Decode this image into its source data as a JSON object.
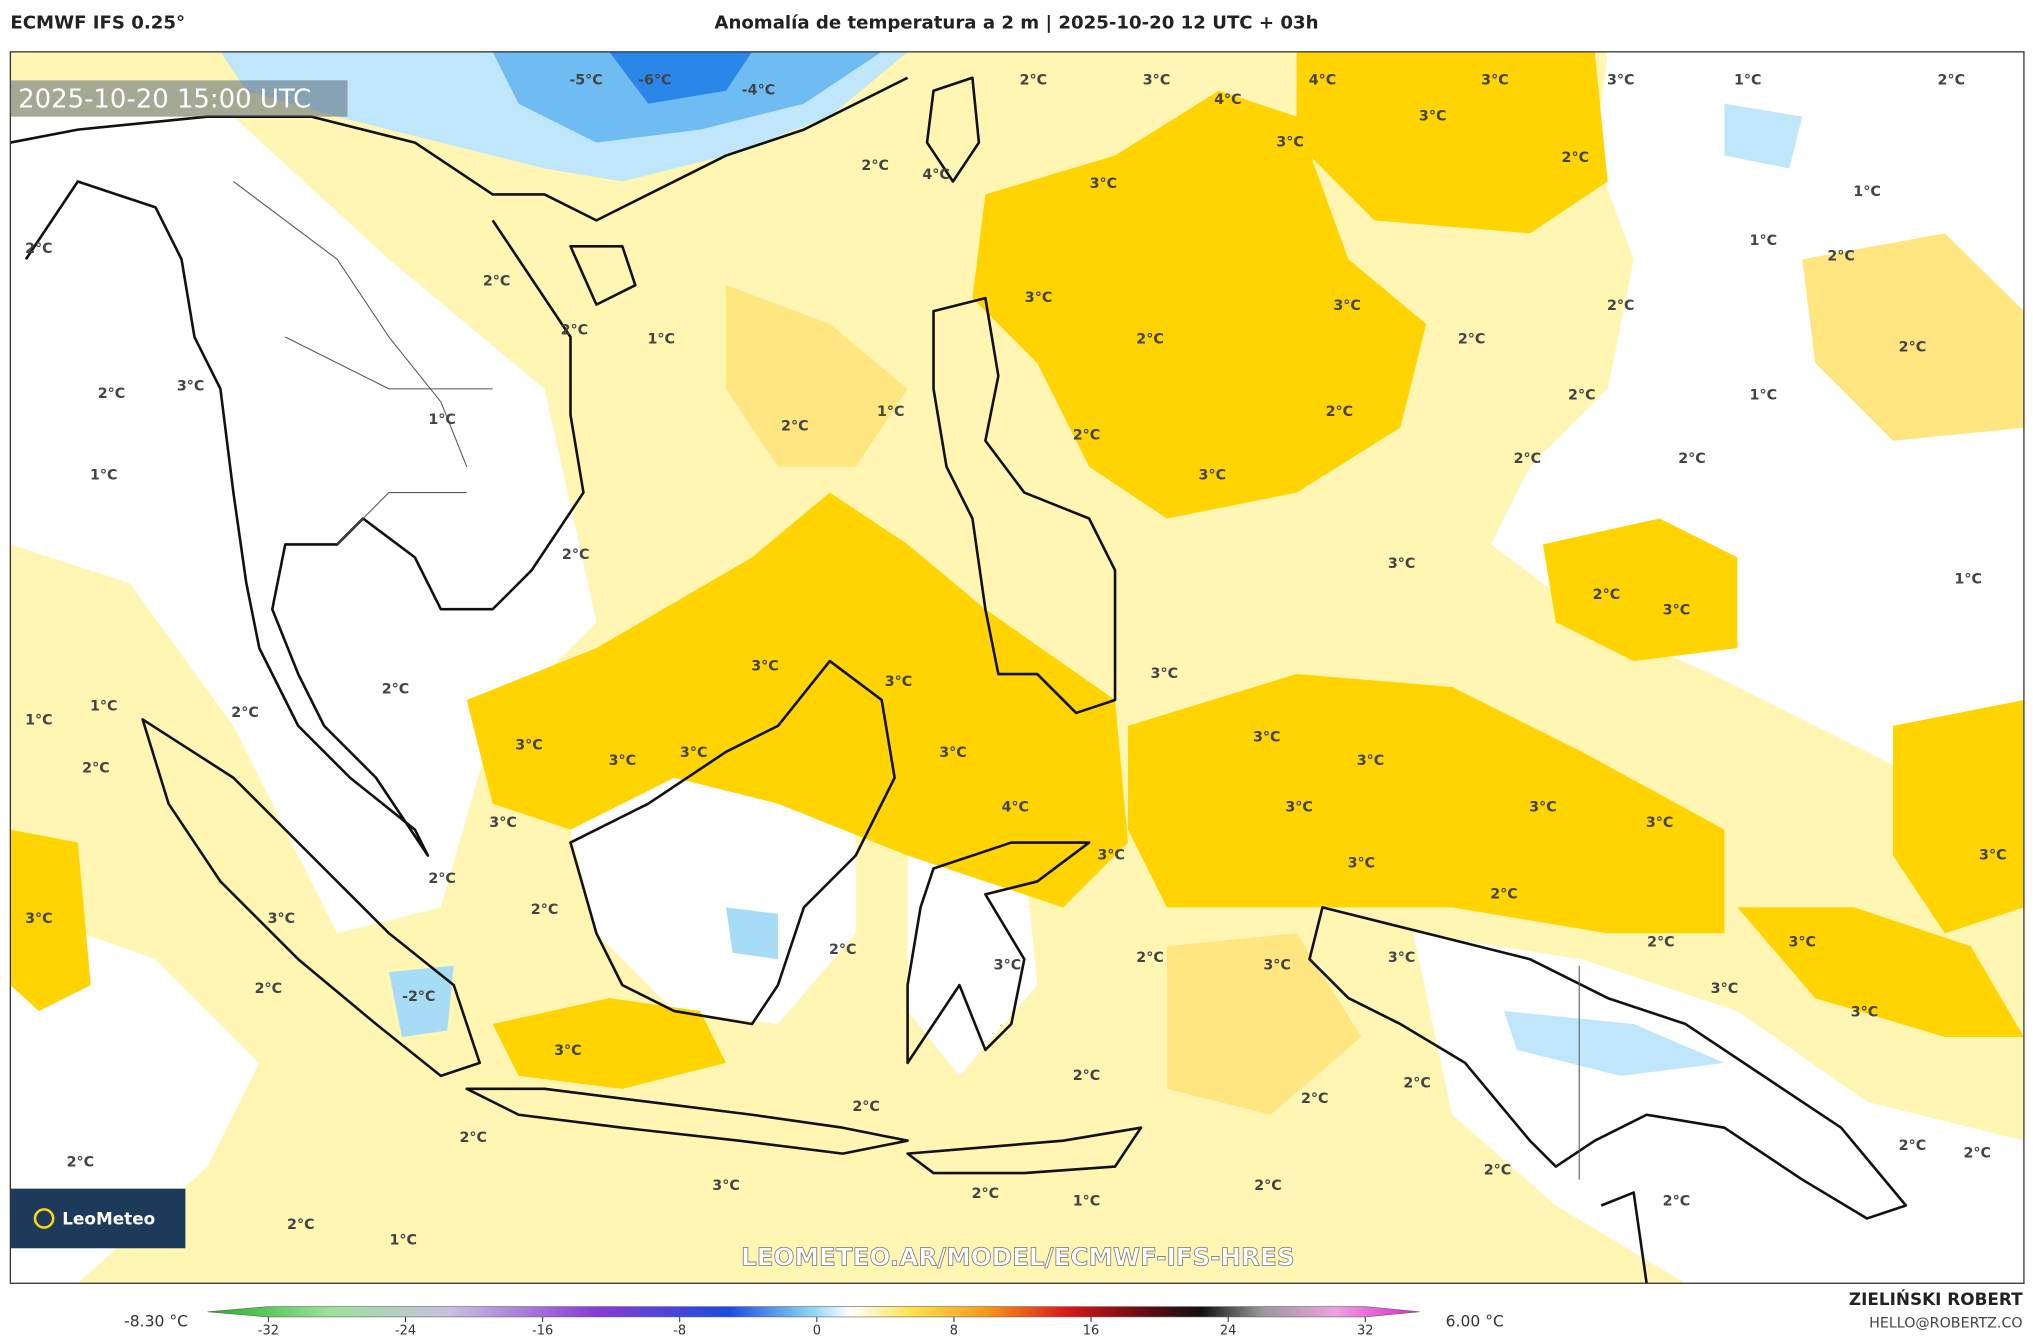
{
  "header": {
    "model": "ECMWF IFS 0.25°",
    "title": "Anomalía de temperatura a 2 m | 2025-10-20 12 UTC + 03h"
  },
  "map": {
    "timestamp": "2025-10-20 15:00 UTC",
    "watermark": "LEOMETEO.AR/MODEL/ECMWF-IFS-HRES",
    "logo": "LeoMeteo",
    "contour_labels": [
      "-5°C",
      "-6°C",
      "-4°C",
      "2°C",
      "3°C",
      "4°C",
      "4°C",
      "3°C",
      "3°C",
      "1°C",
      "2°C",
      "3°C",
      "3°C",
      "2°C",
      "4°C",
      "3°C",
      "2°C",
      "1°C",
      "1°C",
      "2°C",
      "2°C",
      "2°C",
      "3°C",
      "3°C",
      "2°C",
      "2°C",
      "1°C",
      "2°C",
      "2°C",
      "2°C",
      "2°C",
      "3°C",
      "2°C",
      "1°C",
      "1°C",
      "1°C",
      "2°C",
      "2°C",
      "2°C",
      "2°C",
      "2°C",
      "1°C",
      "3°C",
      "2°C",
      "3°C",
      "1°C",
      "2°C",
      "3°C",
      "3°C",
      "3°C",
      "3°C",
      "2°C",
      "1°C",
      "1°C",
      "2°C",
      "3°C",
      "3°C",
      "3°C",
      "3°C",
      "3°C",
      "3°C",
      "2°C",
      "4°C",
      "3°C",
      "3°C",
      "3°C",
      "3°C",
      "3°C",
      "3°C",
      "3°C",
      "2°C",
      "2°C",
      "2°C",
      "3°C",
      "3°C",
      "2°C",
      "3°C",
      "2°C",
      "3°C",
      "3°C",
      "2°C",
      "3°C",
      "-2°C",
      "2°C",
      "3°C",
      "3°C",
      "3°C",
      "2°C",
      "2°C",
      "2°C",
      "2°C",
      "2°C",
      "2°C",
      "2°C",
      "2°C",
      "2°C",
      "3°C",
      "2°C",
      "2°C",
      "2°C",
      "1°C",
      "2°C",
      "1°C"
    ]
  },
  "colorbar": {
    "min_label": "-8.30 °C",
    "max_label": "6.00 °C",
    "ticks": [
      -32,
      -24,
      -16,
      -8,
      0,
      8,
      16,
      24,
      32
    ]
  },
  "credits": {
    "author": "ZIELIŃSKI ROBERT",
    "email": "HELLO@ROBERTZ.CO"
  }
}
